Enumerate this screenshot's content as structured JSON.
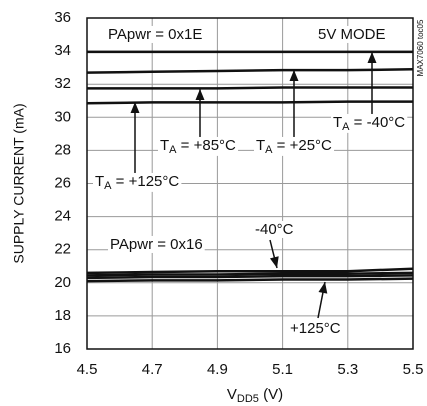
{
  "chart_data": {
    "type": "line",
    "ylabel": "SUPPLY CURRENT (mA)",
    "xlabel_parts": [
      "V",
      "DD5",
      " (V)"
    ],
    "x": [
      4.5,
      4.7,
      4.9,
      5.1,
      5.3,
      5.5
    ],
    "xlim": [
      4.5,
      5.5
    ],
    "xticks": [
      4.5,
      4.7,
      4.9,
      5.1,
      5.3,
      5.5
    ],
    "ylim": [
      16,
      36
    ],
    "yticks": [
      16,
      18,
      20,
      22,
      24,
      26,
      28,
      30,
      32,
      34,
      36
    ],
    "grid": true,
    "series": [
      {
        "color": "#111111",
        "values": [
          33.95,
          33.95,
          33.95,
          33.95,
          33.95,
          33.95
        ]
      },
      {
        "color": "#111111",
        "values": [
          32.7,
          32.75,
          32.8,
          32.85,
          32.85,
          32.9
        ]
      },
      {
        "color": "#111111",
        "values": [
          31.75,
          31.75,
          31.75,
          31.8,
          31.8,
          31.8
        ]
      },
      {
        "color": "#111111",
        "values": [
          30.85,
          30.9,
          30.9,
          30.9,
          30.95,
          30.95
        ]
      },
      {
        "color": "#111111",
        "values": [
          20.6,
          20.65,
          20.7,
          20.7,
          20.7,
          20.85
        ]
      },
      {
        "color": "#111111",
        "values": [
          20.45,
          20.5,
          20.5,
          20.55,
          20.55,
          20.6
        ]
      },
      {
        "color": "#111111",
        "values": [
          20.3,
          20.35,
          20.35,
          20.4,
          20.4,
          20.45
        ]
      },
      {
        "color": "#111111",
        "values": [
          20.1,
          20.15,
          20.15,
          20.2,
          20.2,
          20.25
        ]
      }
    ],
    "annotations": [
      {
        "parts": [
          "PApwr = 0x1E"
        ]
      },
      {
        "parts": [
          "5V MODE"
        ]
      },
      {
        "parts": [
          "T",
          "A",
          " = -40°C"
        ]
      },
      {
        "parts": [
          "T",
          "A",
          " = +25°C"
        ]
      },
      {
        "parts": [
          "T",
          "A",
          " = +85°C"
        ]
      },
      {
        "parts": [
          "T",
          "A",
          " = +125°C"
        ]
      },
      {
        "parts": [
          "-40°C"
        ]
      },
      {
        "parts": [
          "PApwr = 0x16"
        ]
      },
      {
        "parts": [
          "+125°C"
        ]
      },
      {
        "parts": [
          "MAX7060 toc05"
        ]
      }
    ]
  }
}
